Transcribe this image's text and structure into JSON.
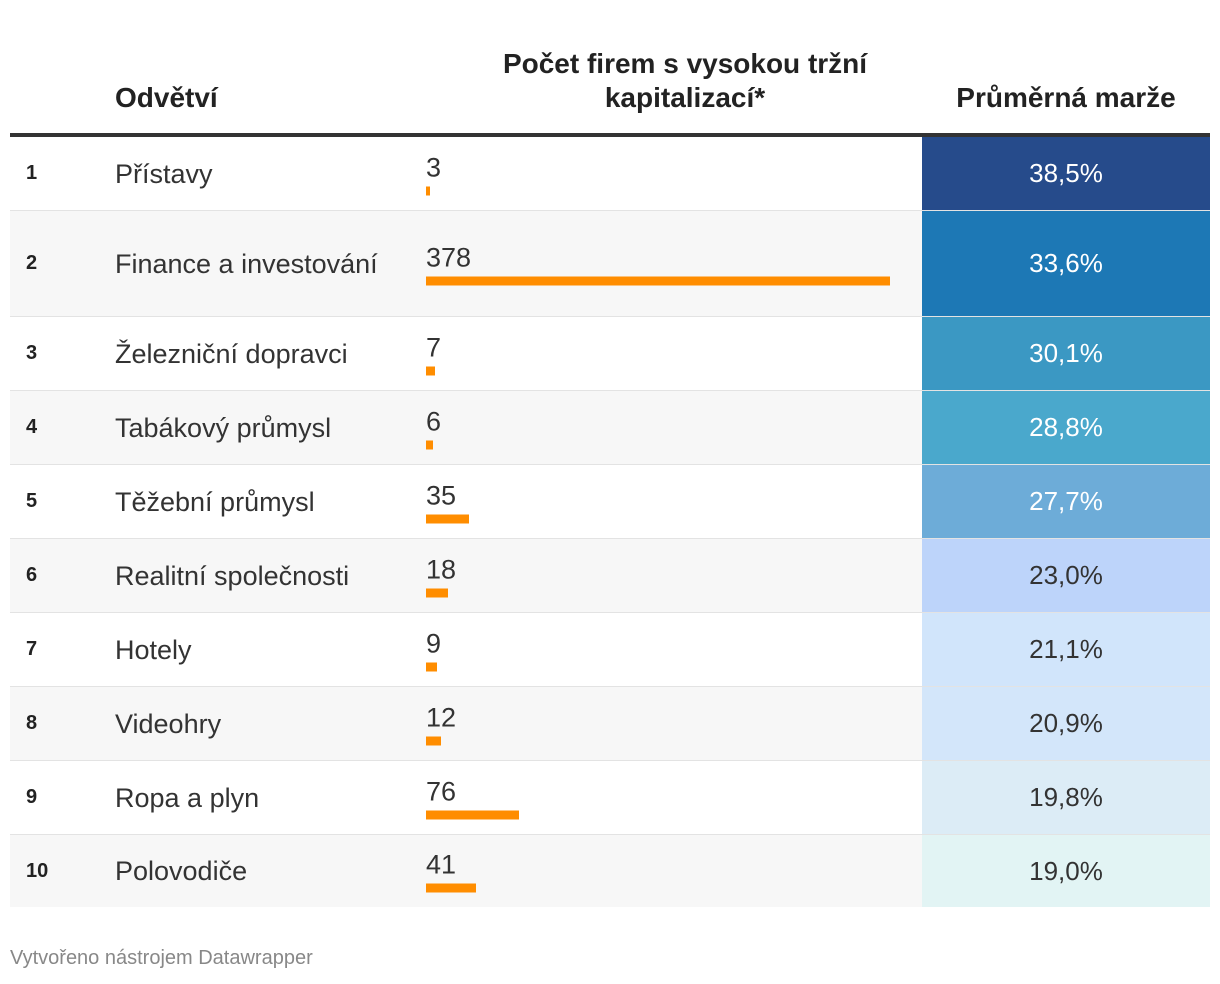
{
  "chart_data": {
    "type": "table",
    "columns": {
      "rank": "",
      "sector": "Odvětví",
      "count": "Počet firem s vysokou tržní kapitalizací*",
      "margin": "Průměrná marže"
    },
    "count_max": 378,
    "rows": [
      {
        "rank": "1",
        "sector": "Přístavy",
        "count": 3,
        "count_label": "3",
        "margin": 38.5,
        "margin_label": "38,5%",
        "bg": "#264b8b",
        "fg": "#ffffff"
      },
      {
        "rank": "2",
        "sector": "Finance a investování",
        "count": 378,
        "count_label": "378",
        "margin": 33.6,
        "margin_label": "33,6%",
        "bg": "#1d78b5",
        "fg": "#ffffff"
      },
      {
        "rank": "3",
        "sector": "Železniční dopravci",
        "count": 7,
        "count_label": "7",
        "margin": 30.1,
        "margin_label": "30,1%",
        "bg": "#3b98c3",
        "fg": "#ffffff"
      },
      {
        "rank": "4",
        "sector": "Tabákový průmysl",
        "count": 6,
        "count_label": "6",
        "margin": 28.8,
        "margin_label": "28,8%",
        "bg": "#4aa8cc",
        "fg": "#ffffff"
      },
      {
        "rank": "5",
        "sector": "Těžební průmysl",
        "count": 35,
        "count_label": "35",
        "margin": 27.7,
        "margin_label": "27,7%",
        "bg": "#6dacd8",
        "fg": "#ffffff"
      },
      {
        "rank": "6",
        "sector": "Realitní společnosti",
        "count": 18,
        "count_label": "18",
        "margin": 23.0,
        "margin_label": "23,0%",
        "bg": "#bdd4fa",
        "fg": "#333333"
      },
      {
        "rank": "7",
        "sector": "Hotely",
        "count": 9,
        "count_label": "9",
        "margin": 21.1,
        "margin_label": "21,1%",
        "bg": "#d1e5fb",
        "fg": "#333333"
      },
      {
        "rank": "8",
        "sector": "Videohry",
        "count": 12,
        "count_label": "12",
        "margin": 20.9,
        "margin_label": "20,9%",
        "bg": "#d3e6fa",
        "fg": "#333333"
      },
      {
        "rank": "9",
        "sector": "Ropa a plyn",
        "count": 76,
        "count_label": "76",
        "margin": 19.8,
        "margin_label": "19,8%",
        "bg": "#dcecf6",
        "fg": "#333333"
      },
      {
        "rank": "10",
        "sector": "Polovodiče",
        "count": 41,
        "count_label": "41",
        "margin": 19.0,
        "margin_label": "19,0%",
        "bg": "#e2f4f4",
        "fg": "#333333"
      }
    ],
    "bar_color": "#ff8d00"
  },
  "footer": {
    "credit": "Vytvořeno nástrojem Datawrapper"
  }
}
